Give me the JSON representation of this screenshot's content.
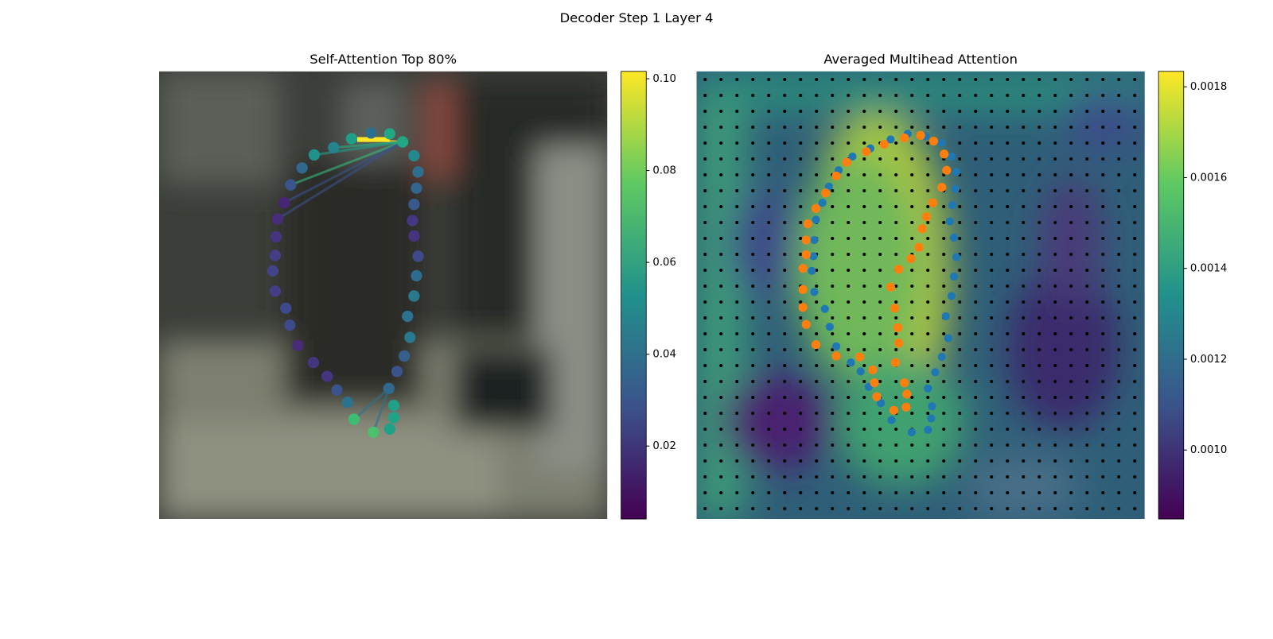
{
  "title": "Decoder Step 1 Layer 4",
  "chart_data": [
    {
      "type": "image",
      "title": "Self-Attention Top 80%",
      "ylim": [
        0.0041,
        0.1016
      ],
      "yticks": [
        0.02,
        0.04,
        0.06,
        0.08,
        {
          "value": 0.1,
          "label": "0.10"
        }
      ]
    },
    {
      "type": "image",
      "title": "Averaged Multihead Attention",
      "ylim": [
        0.000848,
        0.001834
      ],
      "yticks": [
        {
          "value": 0.001,
          "label": "0.0010"
        },
        0.0012,
        0.0014,
        0.0016,
        0.0018
      ]
    }
  ]
}
